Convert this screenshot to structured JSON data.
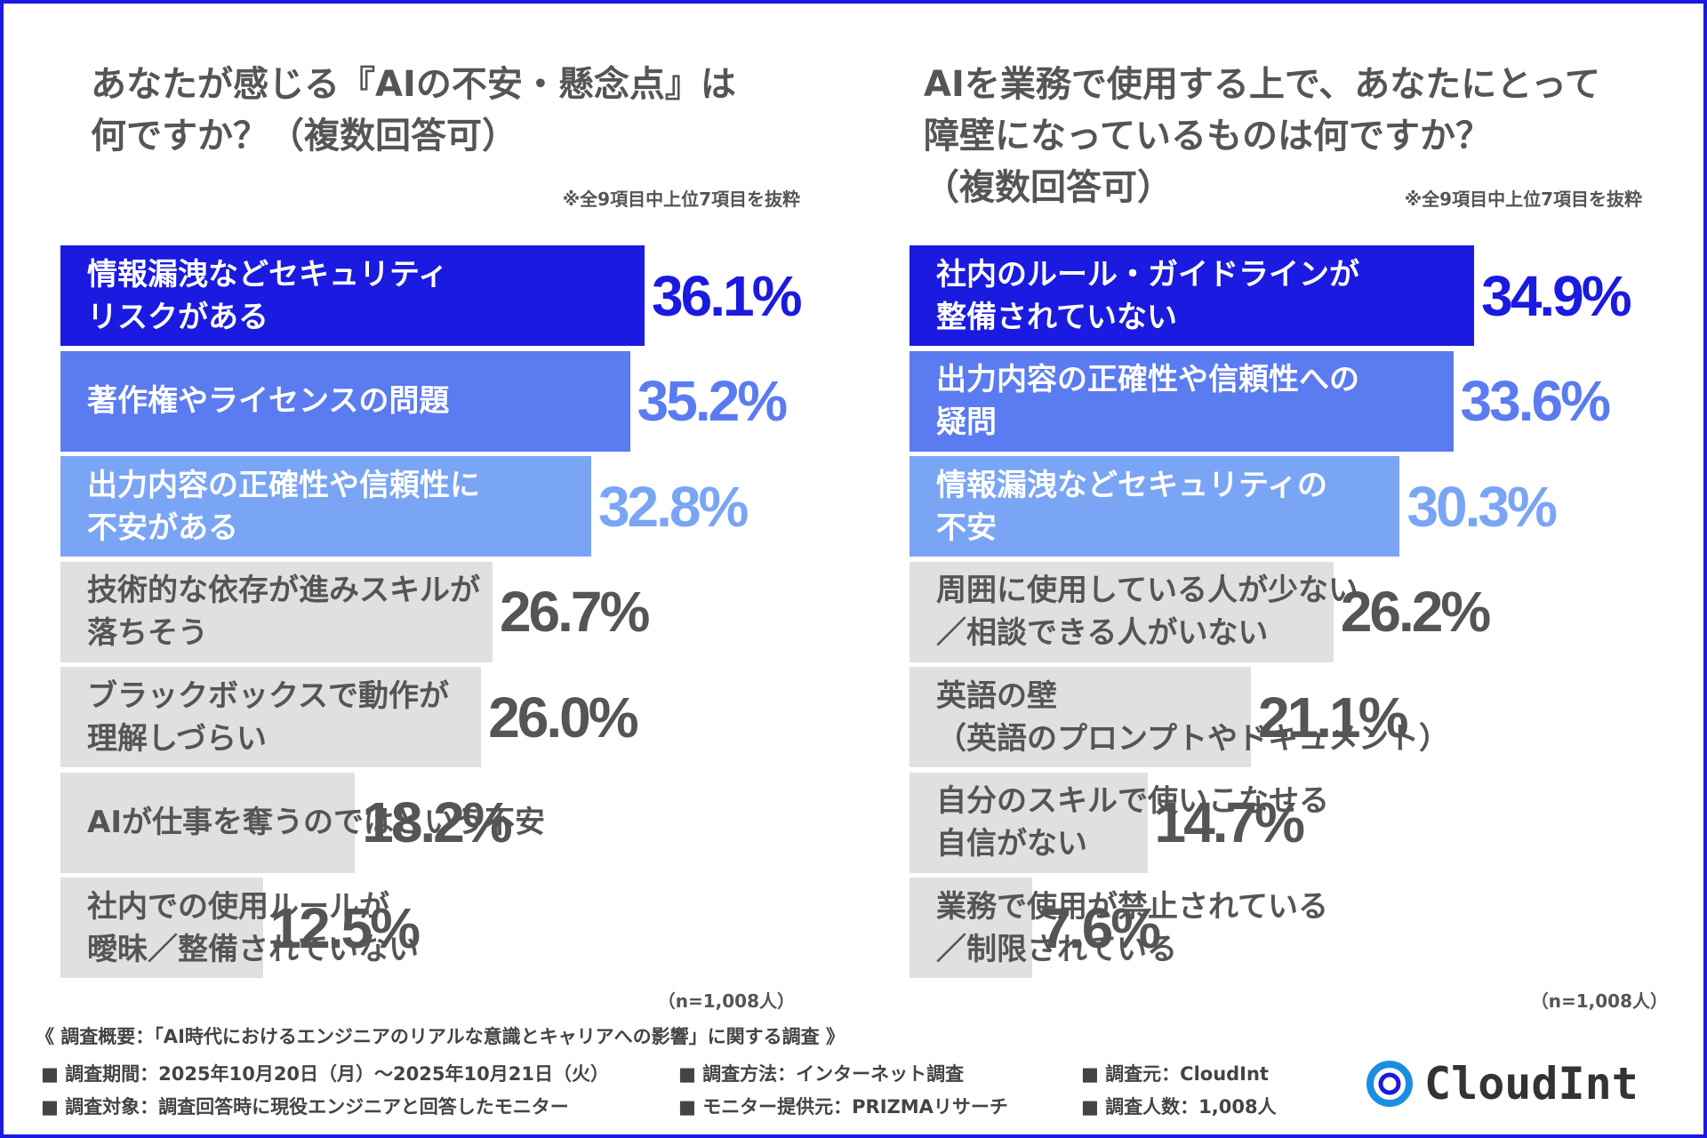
{
  "chart_data": [
    {
      "type": "bar",
      "orientation": "horizontal",
      "title": "あなたが感じる『AIの不安・懸念点』は\n何ですか？（複数回答可）",
      "note": "※全9項目中上位7項目を抜粋",
      "sample": "（n=1,008人）",
      "categories": [
        "情報漏洩などセキュリティ\nリスクがある",
        "著作権やライセンスの問題",
        "出力内容の正確性や信頼性に\n不安がある",
        "技術的な依存が進みスキルが\n落ちそう",
        "ブラックボックスで動作が\n理解しづらい",
        "AIが仕事を奪うのではという不安",
        "社内での使用ルールが\n曖昧／整備されていない"
      ],
      "values": [
        36.1,
        35.2,
        32.8,
        26.7,
        26.0,
        18.2,
        12.5
      ],
      "value_labels": [
        "36.1%",
        "35.2%",
        "32.8%",
        "26.7%",
        "26.0%",
        "18.2%",
        "12.5%"
      ],
      "colors": [
        "#1a1ae0",
        "#5b7bf0",
        "#7aa5f5",
        "#e0e0e0",
        "#e0e0e0",
        "#e0e0e0",
        "#e0e0e0"
      ],
      "value_colors": [
        "#1a1ae0",
        "#5b7bf0",
        "#7aa5f5",
        "#555555",
        "#555555",
        "#555555",
        "#555555"
      ],
      "label_colors": [
        "#ffffff",
        "#ffffff",
        "#ffffff",
        "#555555",
        "#555555",
        "#555555",
        "#555555"
      ]
    },
    {
      "type": "bar",
      "orientation": "horizontal",
      "title": "AIを業務で使用する上で、あなたにとって\n障壁になっているものは何ですか？\n（複数回答可）",
      "note": "※全9項目中上位7項目を抜粋",
      "sample": "（n=1,008人）",
      "categories": [
        "社内のルール・ガイドラインが\n整備されていない",
        "出力内容の正確性や信頼性への\n疑問",
        "情報漏洩などセキュリティの\n不安",
        "周囲に使用している人が少ない\n／相談できる人がいない",
        "英語の壁\n（英語のプロンプトやドキュメント）",
        "自分のスキルで使いこなせる\n自信がない",
        "業務で使用が禁止されている\n／制限されている"
      ],
      "values": [
        34.9,
        33.6,
        30.3,
        26.2,
        21.1,
        14.7,
        7.6
      ],
      "value_labels": [
        "34.9%",
        "33.6%",
        "30.3%",
        "26.2%",
        "21.1%",
        "14.7%",
        "7.6%"
      ],
      "colors": [
        "#1a1ae0",
        "#5b7bf0",
        "#7aa5f5",
        "#e0e0e0",
        "#e0e0e0",
        "#e0e0e0",
        "#e0e0e0"
      ],
      "value_colors": [
        "#1a1ae0",
        "#5b7bf0",
        "#7aa5f5",
        "#555555",
        "#555555",
        "#555555",
        "#555555"
      ],
      "label_colors": [
        "#ffffff",
        "#ffffff",
        "#ffffff",
        "#555555",
        "#555555",
        "#555555",
        "#555555"
      ]
    }
  ],
  "footer": {
    "title": "《 調査概要：「AI時代におけるエンジニアのリアルな意識とキャリアへの影響」に関する調査 》",
    "items": [
      "■ 調査期間：2025年10月20日（月）～2025年10月21日（火）",
      "■ 調査方法：インターネット調査",
      "■ 調査元：CloudInt",
      "■ 調査対象：調査回答時に現役エンジニアと回答したモニター",
      "■ モニター提供元：PRIZMAリサーチ",
      "■ 調査人数：1,008人"
    ]
  },
  "logo": "CloudInt"
}
